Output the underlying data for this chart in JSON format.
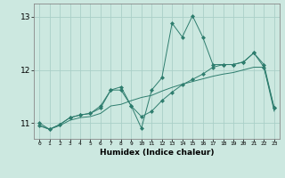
{
  "xlabel": "Humidex (Indice chaleur)",
  "x": [
    0,
    1,
    2,
    3,
    4,
    5,
    6,
    7,
    8,
    9,
    10,
    11,
    12,
    13,
    14,
    15,
    16,
    17,
    18,
    19,
    20,
    21,
    22,
    23
  ],
  "y_line1": [
    10.95,
    10.88,
    10.95,
    11.05,
    11.1,
    11.12,
    11.18,
    11.32,
    11.35,
    11.42,
    11.48,
    11.52,
    11.6,
    11.67,
    11.73,
    11.78,
    11.83,
    11.88,
    11.92,
    11.95,
    12.0,
    12.05,
    12.05,
    11.22
  ],
  "y_line2": [
    11.0,
    10.88,
    10.97,
    11.1,
    11.15,
    11.18,
    11.28,
    11.62,
    11.68,
    11.32,
    10.9,
    11.62,
    11.85,
    12.88,
    12.62,
    13.02,
    12.62,
    12.1,
    12.1,
    12.1,
    12.15,
    12.32,
    12.05,
    11.28
  ],
  "y_line3": [
    10.95,
    10.88,
    10.97,
    11.1,
    11.15,
    11.18,
    11.32,
    11.62,
    11.62,
    11.32,
    11.12,
    11.22,
    11.42,
    11.58,
    11.72,
    11.82,
    11.92,
    12.05,
    12.1,
    12.1,
    12.15,
    12.32,
    12.1,
    11.28
  ],
  "line_color": "#2e7d6e",
  "bg_color": "#cce8e0",
  "grid_color": "#aacfc8",
  "ylim_min": 10.7,
  "ylim_max": 13.25,
  "yticks": [
    11,
    12,
    13
  ],
  "marker": "D",
  "marker_size": 2.0
}
